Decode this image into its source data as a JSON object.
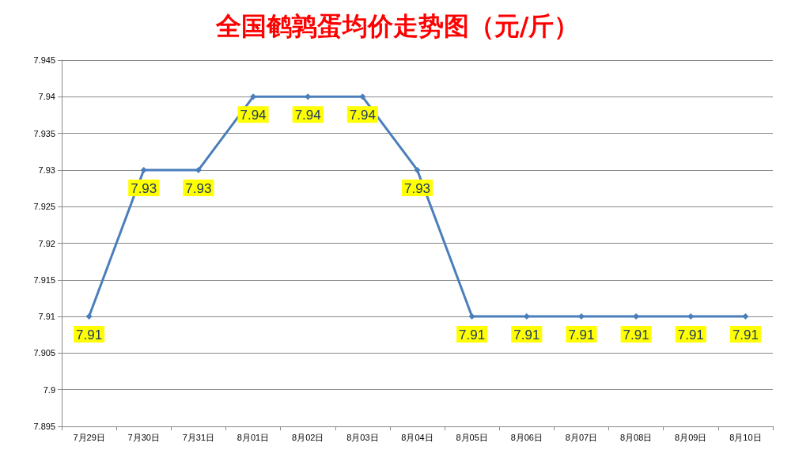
{
  "chart_data": {
    "type": "line",
    "title": "全国鹌鹑蛋均价走势图（元/斤）",
    "categories": [
      "7月29日",
      "7月30日",
      "7月31日",
      "8月01日",
      "8月02日",
      "8月03日",
      "8月04日",
      "8月05日",
      "8月06日",
      "8月07日",
      "8月08日",
      "8月09日",
      "8月10日"
    ],
    "series": [
      {
        "color": "#4a7ebb",
        "values": [
          7.91,
          7.93,
          7.93,
          7.94,
          7.94,
          7.94,
          7.93,
          7.91,
          7.91,
          7.91,
          7.91,
          7.91,
          7.91
        ]
      }
    ],
    "ylim": [
      7.895,
      7.945
    ],
    "yticks": [
      7.895,
      7.9,
      7.905,
      7.91,
      7.915,
      7.92,
      7.925,
      7.93,
      7.935,
      7.94,
      7.945
    ],
    "grid": "y",
    "marker": "diamond",
    "line_style": "solid",
    "data_labels": true
  }
}
